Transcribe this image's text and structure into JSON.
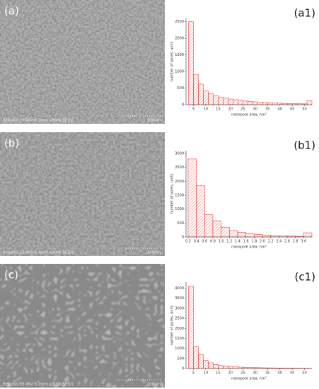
{
  "panels": [
    {
      "label": "(a)",
      "caption": "Regulus 15.0kV 6.2mm x300k SE(U)",
      "scale": "100nm"
    },
    {
      "label": "(b)",
      "caption": "Regulus 15.0kV 6.4mm x300k SE(U)",
      "scale": "100nm"
    },
    {
      "label": "(c)",
      "caption": "Regulus 15.0kV 6.2mm x300k SE(U)",
      "scale": "100nm"
    }
  ],
  "chart_data": [
    {
      "type": "histogram",
      "label": "(a1)",
      "xlabel": "nanopore area, nm²",
      "ylabel": "number of pores, units",
      "color": "#e8473f",
      "bins": [
        3,
        5,
        7,
        9,
        11,
        13,
        15,
        17,
        19,
        21,
        23,
        25,
        27,
        29,
        31,
        33,
        35,
        37,
        39,
        41,
        43,
        45,
        47,
        49,
        51,
        53
      ],
      "counts": [
        2500,
        900,
        620,
        420,
        330,
        270,
        230,
        200,
        170,
        150,
        130,
        110,
        95,
        85,
        75,
        65,
        55,
        50,
        45,
        40,
        35,
        30,
        28,
        25,
        120
      ],
      "xlim": [
        2,
        53
      ],
      "xticks": [
        5,
        10,
        15,
        20,
        25,
        30,
        35,
        40,
        45,
        50
      ],
      "ylim": [
        0,
        2600
      ],
      "yticks": [
        0,
        500,
        1000,
        1500,
        2000,
        2500
      ]
    },
    {
      "type": "histogram",
      "label": "(b1)",
      "xlabel": "nanopore area, nm²",
      "ylabel": "number of pores, units",
      "color": "#e8473f",
      "bins": [
        0.2,
        0.4,
        0.6,
        0.8,
        1,
        1.2,
        1.4,
        1.6,
        1.8,
        2,
        2.2,
        2.4,
        2.6,
        2.8,
        3,
        3.2
      ],
      "counts": [
        2800,
        1850,
        800,
        580,
        350,
        230,
        170,
        120,
        90,
        70,
        50,
        40,
        30,
        25,
        150
      ],
      "xlim": [
        0.15,
        3.2
      ],
      "xticks": [
        0.2,
        0.4,
        0.6,
        0.8,
        {
          "value": 1,
          "label": "1.0"
        },
        1.2,
        1.4,
        1.6,
        1.8,
        {
          "value": 2,
          "label": "2.0"
        },
        2.2,
        2.4,
        2.6,
        2.8,
        {
          "value": 3,
          "label": "3.0"
        }
      ],
      "ylim": [
        0,
        3100
      ],
      "yticks": [
        0,
        500,
        1000,
        1500,
        2000,
        2500,
        3000
      ]
    },
    {
      "type": "histogram",
      "label": "(c1)",
      "xlabel": "nanopore area, nm²",
      "ylabel": "number of pores, units",
      "color": "#e8473f",
      "bins": [
        3,
        5,
        7,
        9,
        11,
        13,
        15,
        17,
        19,
        21,
        23,
        25,
        27,
        29,
        31,
        33,
        35,
        37,
        39,
        41,
        43,
        45,
        47,
        49,
        51,
        53
      ],
      "counts": [
        4100,
        1100,
        700,
        400,
        280,
        200,
        150,
        120,
        100,
        80,
        70,
        60,
        50,
        45,
        40,
        35,
        30,
        28,
        25,
        22,
        20,
        18,
        15,
        12,
        10
      ],
      "xlim": [
        2,
        53
      ],
      "xticks": [
        5,
        10,
        15,
        20,
        25,
        30,
        35,
        40,
        45,
        50
      ],
      "ylim": [
        0,
        4300
      ],
      "yticks": [
        0,
        500,
        1000,
        1500,
        2000,
        2500,
        3000,
        3500,
        4000
      ]
    }
  ]
}
